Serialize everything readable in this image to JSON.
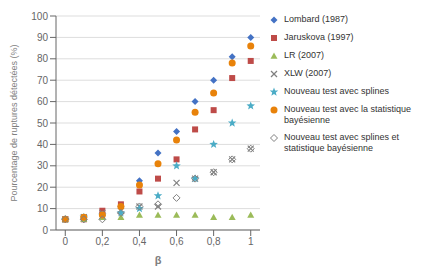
{
  "chart_data": {
    "type": "scatter",
    "xlabel": "β",
    "ylabel": "Pourcentage de ruptures détectées (%)",
    "x": [
      0,
      0.1,
      0.2,
      0.3,
      0.4,
      0.5,
      0.6,
      0.7,
      0.8,
      0.9,
      1.0
    ],
    "series": [
      {
        "name": "Lombard (1987)",
        "color": "#4472c4",
        "marker": "diamond",
        "values": [
          5,
          5,
          8,
          11,
          23,
          36,
          46,
          60,
          70,
          81,
          90
        ]
      },
      {
        "name": "Jaruskova (1997)",
        "color": "#be4b48",
        "marker": "square",
        "values": [
          5,
          5,
          9,
          12,
          18,
          24,
          33,
          47,
          56,
          71,
          79
        ]
      },
      {
        "name": "LR (2007)",
        "color": "#9bbb59",
        "marker": "triangle",
        "values": [
          5,
          5,
          6,
          6,
          7,
          7,
          7,
          7,
          6,
          6,
          7
        ]
      },
      {
        "name": "XLW (2007)",
        "color": "#808080",
        "marker": "x",
        "values": [
          5,
          6,
          8,
          9,
          11,
          11,
          22,
          24,
          27,
          33,
          38
        ]
      },
      {
        "name": "Nouveau test avec splines",
        "color": "#4bacc6",
        "marker": "star",
        "values": [
          5,
          6,
          7,
          8,
          10,
          16,
          30,
          24,
          40,
          50,
          58
        ]
      },
      {
        "name": "Nouveau test avec la statistique\nbayésienne",
        "color": "#e8820a",
        "marker": "circle",
        "values": [
          5,
          6,
          7,
          11,
          21,
          31,
          42,
          55,
          64,
          78,
          86
        ]
      },
      {
        "name": "Nouveau test avec splines et\nstatistique bayésienne",
        "color": "#808080",
        "marker": "hollow_diamond",
        "values": [
          5,
          5,
          5,
          8,
          11,
          12,
          15,
          24,
          27,
          33,
          38
        ]
      }
    ],
    "xlim": [
      -0.05,
      1.05
    ],
    "ylim": [
      0,
      100
    ],
    "xticks": [
      0,
      {
        "value": 0.2,
        "label": "0,2"
      },
      {
        "value": 0.4,
        "label": "0,4"
      },
      {
        "value": 0.6,
        "label": "0,6"
      },
      {
        "value": 0.8,
        "label": "0,8"
      },
      1
    ],
    "yticks": [
      0,
      10,
      20,
      30,
      40,
      50,
      60,
      70,
      80,
      90,
      100
    ],
    "grid": "y",
    "legend": "right"
  }
}
